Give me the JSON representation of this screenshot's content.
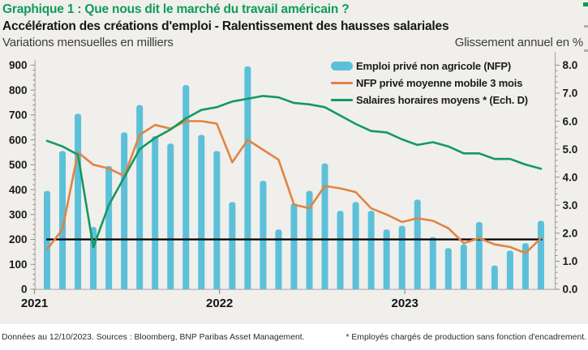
{
  "footer": {
    "left": "Données au 12/10/2023. Sources : Bloomberg, BNP Paribas Asset Management.",
    "right": "* Employés chargés de production sans fonction d'encadrement."
  },
  "colors": {
    "background": "#f0efec",
    "footer_background": "#ffffff",
    "title_green": "#0e9b58",
    "bar_teal": "#5dc0d9",
    "line_orange": "#e08443",
    "line_green": "#149960",
    "reference_black": "#000000",
    "axis_gray": "#b0aeaa",
    "tick_gray": "#8f8d89"
  },
  "chart_data": {
    "type": "bar",
    "title": "Graphique 1 : Que nous dit le marché du travail américain ?",
    "subtitle": "Accélération des créations d'emploi - Ralentissement des hausses salariales",
    "months": [
      "2021-01",
      "2021-02",
      "2021-03",
      "2021-04",
      "2021-05",
      "2021-06",
      "2021-07",
      "2021-08",
      "2021-09",
      "2021-10",
      "2021-11",
      "2021-12",
      "2022-01",
      "2022-02",
      "2022-03",
      "2022-04",
      "2022-05",
      "2022-06",
      "2022-07",
      "2022-08",
      "2022-09",
      "2022-10",
      "2022-11",
      "2022-12",
      "2023-01",
      "2023-02",
      "2023-03",
      "2023-04",
      "2023-05",
      "2023-06",
      "2023-07",
      "2023-08",
      "2023-09"
    ],
    "year_labels": [
      "2021",
      "2022",
      "2023"
    ],
    "left_axis": {
      "caption": "Variations mensuelles en milliers",
      "min": 0,
      "max": 900,
      "major_step": 100,
      "minor_step": 20
    },
    "right_axis": {
      "caption": "Glissement annuel en %",
      "min": 0,
      "max": 8,
      "major_step": 1,
      "minor_step": 0.2,
      "decimals": 1
    },
    "reference_line": {
      "value": 200,
      "color": "#000000"
    },
    "legend_position": "top-right-inside",
    "grid": "off",
    "series": [
      {
        "name": "Emploi privé non agricole (NFP)",
        "type": "bar",
        "axis": "left",
        "color": "#5dc0d9",
        "values": [
          395,
          555,
          705,
          250,
          495,
          630,
          740,
          615,
          585,
          820,
          620,
          555,
          350,
          895,
          435,
          240,
          345,
          395,
          505,
          315,
          350,
          315,
          240,
          255,
          360,
          210,
          165,
          180,
          270,
          95,
          155,
          185,
          275
        ]
      },
      {
        "name": "NFP privé moyenne mobile 3 mois",
        "type": "line",
        "axis": "left",
        "color": "#e08443",
        "values": [
          160,
          240,
          550,
          500,
          485,
          455,
          620,
          660,
          645,
          675,
          675,
          665,
          510,
          600,
          560,
          520,
          340,
          325,
          415,
          405,
          390,
          325,
          300,
          270,
          285,
          275,
          245,
          185,
          205,
          180,
          170,
          145,
          205
        ]
      },
      {
        "name": "Salaires horaires moyens * (Ech. D)",
        "type": "line",
        "axis": "right",
        "color": "#149960",
        "values": [
          5.3,
          5.1,
          4.8,
          1.5,
          3.0,
          4.0,
          5.0,
          5.4,
          5.7,
          6.1,
          6.4,
          6.5,
          6.7,
          6.8,
          6.9,
          6.85,
          6.65,
          6.6,
          6.5,
          6.2,
          5.9,
          5.65,
          5.6,
          5.35,
          5.15,
          5.25,
          5.1,
          4.85,
          4.85,
          4.65,
          4.65,
          4.45,
          4.3
        ]
      }
    ]
  }
}
